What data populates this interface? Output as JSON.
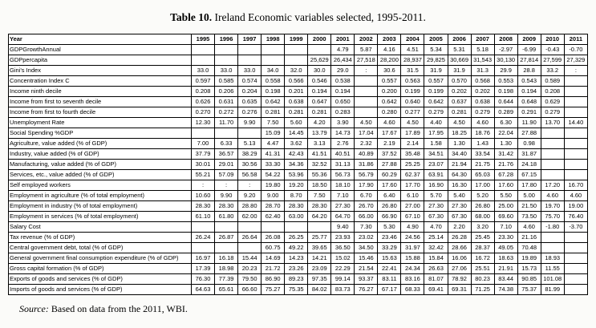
{
  "title": {
    "bold": "Table 10.",
    "rest": " Ireland Economic variables selected, 1995-2011."
  },
  "source": {
    "prefix": "Source:",
    "rest": " Based on data from the 2011, WBI."
  },
  "table": {
    "columns": [
      "Year",
      "1995",
      "1996",
      "1997",
      "1998",
      "1999",
      "2000",
      "2001",
      "2002",
      "2003",
      "2004",
      "2005",
      "2006",
      "2007",
      "2008",
      "2009",
      "2010",
      "2011"
    ],
    "rows": [
      {
        "label": "GDPGrowthAnnual",
        "values": [
          "",
          "",
          "",
          "",
          "",
          "",
          "4.79",
          "5.87",
          "4.16",
          "4.51",
          "5.34",
          "5.31",
          "5.18",
          "-2.97",
          "-6.99",
          "-0.43",
          "-0.70"
        ]
      },
      {
        "label": "GDPpercapita",
        "values": [
          "",
          "",
          "",
          "",
          "",
          "25,629",
          "26,434",
          "27,518",
          "28,200",
          "28,937",
          "29,825",
          "30,669",
          "31,543",
          "30,130",
          "27,814",
          "27,599",
          "27,329"
        ]
      },
      {
        "label": "Gini's Index",
        "values": [
          "33.0",
          "33.0",
          "33.0",
          "34.0",
          "32.0",
          "30.0",
          "29.0",
          ":",
          "30.6",
          "31.5",
          "31.9",
          "31.9",
          "31.3",
          "29.9",
          "28.8",
          "33.2",
          ":"
        ]
      },
      {
        "label": "Concentration Index C",
        "values": [
          "0.597",
          "0.585",
          "0.574",
          "0.558",
          "0.566",
          "0.546",
          "0.538",
          "",
          "0.557",
          "0.563",
          "0.557",
          "0.570",
          "0.568",
          "0.553",
          "0.543",
          "0.589",
          ""
        ]
      },
      {
        "label": "Income ninth decile",
        "values": [
          "0.208",
          "0.206",
          "0.204",
          "0.198",
          "0.201",
          "0.194",
          "0.194",
          "",
          "0.200",
          "0.199",
          "0.199",
          "0.202",
          "0.202",
          "0.198",
          "0.194",
          "0.208",
          ""
        ]
      },
      {
        "label": "Income from first to seventh decile",
        "values": [
          "0.626",
          "0.631",
          "0.635",
          "0.642",
          "0.638",
          "0.647",
          "0.650",
          "",
          "0.642",
          "0.640",
          "0.642",
          "0.637",
          "0.638",
          "0.644",
          "0.648",
          "0.629",
          ""
        ]
      },
      {
        "label": "Income from first to fourth decile",
        "values": [
          "0.270",
          "0.272",
          "0.276",
          "0.281",
          "0.281",
          "0.281",
          "0.283",
          "",
          "0.280",
          "0.277",
          "0.279",
          "0.281",
          "0.279",
          "0.289",
          "0.291",
          "0.279",
          ""
        ]
      },
      {
        "label": "Unemployment Rate",
        "values": [
          "12.30",
          "11.70",
          "9.90",
          "7.50",
          "5.60",
          "4.20",
          "3.90",
          "4.50",
          "4.60",
          "4.50",
          "4.40",
          "4.50",
          "4.60",
          "6.30",
          "11.90",
          "13.70",
          "14.40"
        ]
      },
      {
        "label": "Social Spending %GDP",
        "values": [
          "",
          "",
          "",
          "15.09",
          "14.45",
          "13.79",
          "14.73",
          "17.04",
          "17.67",
          "17.89",
          "17.95",
          "18.25",
          "18.76",
          "22.04",
          "27.88",
          "",
          ""
        ]
      },
      {
        "label": "Agriculture, value added (% of GDP)",
        "values": [
          "7.00",
          "6.33",
          "5.13",
          "4.47",
          "3.62",
          "3.13",
          "2.76",
          "2.32",
          "2.19",
          "2.14",
          "1.58",
          "1.30",
          "1.43",
          "1.30",
          "0.98",
          "",
          ""
        ]
      },
      {
        "label": "Industry, value added (% of GDP)",
        "values": [
          "37.79",
          "36.57",
          "38.29",
          "41.31",
          "42.43",
          "41.51",
          "40.51",
          "40.89",
          "37.52",
          "35.48",
          "34.51",
          "34.40",
          "33.54",
          "31.42",
          "31.87",
          "",
          ""
        ]
      },
      {
        "label": "Manufacturing, value added (% of GDP)",
        "values": [
          "30.01",
          "29.01",
          "30.56",
          "33.30",
          "34.36",
          "32.52",
          "31.13",
          "31.86",
          "27.88",
          "25.25",
          "23.07",
          "21.94",
          "21.75",
          "21.76",
          "24.18",
          "",
          ""
        ]
      },
      {
        "label": "Services, etc., value added (% of GDP)",
        "values": [
          "55.21",
          "57.09",
          "56.58",
          "54.22",
          "53.96",
          "55.36",
          "56.73",
          "56.79",
          "60.29",
          "62.37",
          "63.91",
          "64.30",
          "65.03",
          "67.28",
          "67.15",
          "",
          ""
        ]
      },
      {
        "label": "Self employed workers",
        "values": [
          ":",
          ":",
          ":",
          "19.80",
          "19.20",
          "18.50",
          "18.10",
          "17.90",
          "17.60",
          "17.70",
          "16.90",
          "16.30",
          "17.00",
          "17.60",
          "17.80",
          "17.20",
          "16.70"
        ]
      },
      {
        "label": "Employment in agriculture (% of total employment)",
        "values": [
          "10.60",
          "9.90",
          "9.20",
          "9.00",
          "8.70",
          "7.50",
          "7.10",
          "6.70",
          "6.40",
          "6.10",
          "5.70",
          "5.40",
          "5.20",
          "5.50",
          "5.00",
          "4.60",
          "4.60"
        ]
      },
      {
        "label": "Employment in industry (% of total employment)",
        "values": [
          "28.30",
          "28.30",
          "28.80",
          "28.70",
          "28.30",
          "28.30",
          "27.30",
          "26.70",
          "26.80",
          "27.00",
          "27.30",
          "27.30",
          "26.80",
          "25.00",
          "21.50",
          "19.70",
          "19.00"
        ]
      },
      {
        "label": "Employment in services (% of total employment)",
        "values": [
          "61.10",
          "61.80",
          "62.00",
          "62.40",
          "63.00",
          "64.20",
          "64.70",
          "66.00",
          "66.90",
          "67.10",
          "67.30",
          "67.30",
          "68.00",
          "69.60",
          "73.50",
          "75.70",
          "76.40"
        ]
      },
      {
        "label": "Salary Cost",
        "values": [
          "",
          "",
          "",
          "",
          "",
          "",
          "9.40",
          "7.30",
          "5.30",
          "4.90",
          "4.70",
          "2.20",
          "3.20",
          "7.10",
          "4.60",
          "-1.80",
          "-3.70"
        ]
      },
      {
        "label": "Tax revenue (% of GDP)",
        "values": [
          "26.24",
          "26.87",
          "26.64",
          "26.08",
          "26.25",
          "25.77",
          "23.93",
          "23.02",
          "23.46",
          "24.56",
          "25.14",
          "26.28",
          "25.45",
          "23.30",
          "21.16",
          "",
          ""
        ]
      },
      {
        "label": "Central government debt, total (% of GDP)",
        "values": [
          "",
          "",
          "",
          "60.75",
          "49.22",
          "39.65",
          "36.50",
          "34.50",
          "33.29",
          "31.97",
          "32.42",
          "28.66",
          "28.37",
          "49.05",
          "70.48",
          "",
          ""
        ]
      },
      {
        "label": "General government final consumption expenditure (% of GDP)",
        "values": [
          "16.97",
          "16.18",
          "15.44",
          "14.69",
          "14.23",
          "14.21",
          "15.02",
          "15.46",
          "15.63",
          "15.88",
          "15.84",
          "16.06",
          "16.72",
          "18.63",
          "19.89",
          "18.93",
          ""
        ]
      },
      {
        "label": "Gross capital formation (% of GDP)",
        "values": [
          "17.39",
          "18.98",
          "20.23",
          "21.72",
          "23.26",
          "23.09",
          "22.29",
          "21.54",
          "22.41",
          "24.34",
          "26.63",
          "27.06",
          "25.51",
          "21.91",
          "15.73",
          "11.55",
          ""
        ]
      },
      {
        "label": "Exports of goods and services (% of GDP)",
        "values": [
          "76.30",
          "77.39",
          "79.50",
          "86.90",
          "89.23",
          "97.35",
          "99.14",
          "93.37",
          "83.11",
          "83.16",
          "81.07",
          "78.92",
          "80.23",
          "83.44",
          "90.85",
          "101.08",
          ""
        ]
      },
      {
        "label": "Imports of goods and services (% of GDP)",
        "values": [
          "64.63",
          "65.61",
          "66.60",
          "75.27",
          "75.35",
          "84.02",
          "83.73",
          "76.27",
          "67.17",
          "68.33",
          "69.41",
          "69.31",
          "71.25",
          "74.38",
          "75.37",
          "81.99",
          ""
        ]
      }
    ]
  }
}
